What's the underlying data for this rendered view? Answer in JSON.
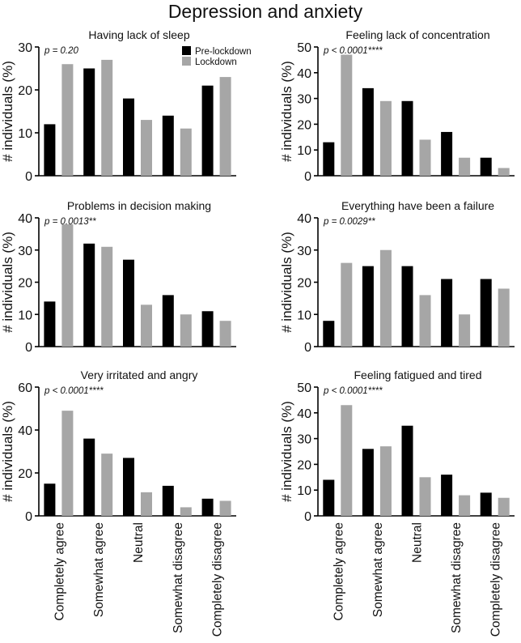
{
  "figure": {
    "title": "Depression and anxiety",
    "ylabel": "# individuals (%)",
    "categories": [
      "Completely agree",
      "Somewhat agree",
      "Neutral",
      "Somewhat disagree",
      "Completely disagree"
    ],
    "legend": [
      "Pre-lockdown",
      "Lockdown"
    ],
    "colors": {
      "pre": "#000000",
      "lock": "#a6a6a6"
    }
  },
  "chart_data": [
    {
      "type": "bar",
      "title": "Having lack of sleep",
      "pvalue": "p = 0.20",
      "ylabel": "# individuals (%)",
      "ylim": [
        0,
        30
      ],
      "yticks": [
        0,
        10,
        20,
        30
      ],
      "categories": [
        "Completely agree",
        "Somewhat agree",
        "Neutral",
        "Somewhat disagree",
        "Completely disagree"
      ],
      "series": [
        {
          "name": "Pre-lockdown",
          "values": [
            12,
            25,
            18,
            14,
            21
          ]
        },
        {
          "name": "Lockdown",
          "values": [
            26,
            27,
            13,
            11,
            23
          ]
        }
      ],
      "legend": [
        "Pre-lockdown",
        "Lockdown"
      ]
    },
    {
      "type": "bar",
      "title": "Feeling lack of concentration",
      "pvalue": "p < 0.0001****",
      "ylabel": "# individuals (%)",
      "ylim": [
        0,
        50
      ],
      "yticks": [
        0,
        10,
        20,
        30,
        40,
        50
      ],
      "categories": [
        "Completely agree",
        "Somewhat agree",
        "Neutral",
        "Somewhat disagree",
        "Completely disagree"
      ],
      "series": [
        {
          "name": "Pre-lockdown",
          "values": [
            13,
            34,
            29,
            17,
            7
          ]
        },
        {
          "name": "Lockdown",
          "values": [
            47,
            29,
            14,
            7,
            3
          ]
        }
      ]
    },
    {
      "type": "bar",
      "title": "Problems in decision making",
      "pvalue": "p = 0.0013**",
      "ylabel": "# individuals (%)",
      "ylim": [
        0,
        40
      ],
      "yticks": [
        0,
        10,
        20,
        30,
        40
      ],
      "categories": [
        "Completely agree",
        "Somewhat agree",
        "Neutral",
        "Somewhat disagree",
        "Completely disagree"
      ],
      "series": [
        {
          "name": "Pre-lockdown",
          "values": [
            14,
            32,
            27,
            16,
            11
          ]
        },
        {
          "name": "Lockdown",
          "values": [
            38,
            31,
            13,
            10,
            8
          ]
        }
      ]
    },
    {
      "type": "bar",
      "title": "Everything have been a failure",
      "pvalue": "p = 0.0029**",
      "ylabel": "# individuals (%)",
      "ylim": [
        0,
        40
      ],
      "yticks": [
        0,
        10,
        20,
        30,
        40
      ],
      "categories": [
        "Completely agree",
        "Somewhat agree",
        "Neutral",
        "Somewhat disagree",
        "Completely disagree"
      ],
      "series": [
        {
          "name": "Pre-lockdown",
          "values": [
            8,
            25,
            25,
            21,
            21
          ]
        },
        {
          "name": "Lockdown",
          "values": [
            26,
            30,
            16,
            10,
            18
          ]
        }
      ]
    },
    {
      "type": "bar",
      "title": "Very irritated and angry",
      "pvalue": "p < 0.0001****",
      "ylabel": "# individuals (%)",
      "ylim": [
        0,
        60
      ],
      "yticks": [
        0,
        20,
        40,
        60
      ],
      "categories": [
        "Completely agree",
        "Somewhat agree",
        "Neutral",
        "Somewhat disagree",
        "Completely disagree"
      ],
      "series": [
        {
          "name": "Pre-lockdown",
          "values": [
            15,
            36,
            27,
            14,
            8
          ]
        },
        {
          "name": "Lockdown",
          "values": [
            49,
            29,
            11,
            4,
            7
          ]
        }
      ]
    },
    {
      "type": "bar",
      "title": "Feeling fatigued and tired",
      "pvalue": "p < 0.0001****",
      "ylabel": "# individuals (%)",
      "ylim": [
        0,
        50
      ],
      "yticks": [
        0,
        10,
        20,
        30,
        40,
        50
      ],
      "categories": [
        "Completely agree",
        "Somewhat agree",
        "Neutral",
        "Somewhat disagree",
        "Completely disagree"
      ],
      "series": [
        {
          "name": "Pre-lockdown",
          "values": [
            14,
            26,
            35,
            16,
            9
          ]
        },
        {
          "name": "Lockdown",
          "values": [
            43,
            27,
            15,
            8,
            7
          ]
        }
      ]
    }
  ]
}
